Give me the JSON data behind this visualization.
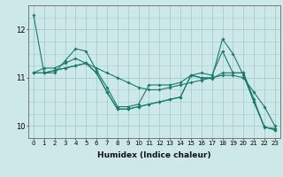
{
  "title": "",
  "xlabel": "Humidex (Indice chaleur)",
  "background_color": "#cce8e8",
  "grid_color": "#aacccc",
  "line_color": "#1a7a6e",
  "series": [
    [
      12.3,
      11.1,
      11.1,
      11.35,
      11.6,
      11.55,
      11.15,
      10.8,
      10.4,
      10.4,
      10.45,
      10.85,
      10.85,
      10.85,
      10.9,
      11.05,
      11.1,
      11.05,
      11.55,
      11.1,
      11.1,
      10.55,
      9.97,
      9.95
    ],
    [
      11.1,
      11.2,
      11.2,
      11.3,
      11.4,
      11.3,
      11.2,
      11.1,
      11.0,
      10.9,
      10.8,
      10.75,
      10.75,
      10.8,
      10.85,
      10.9,
      10.95,
      11.0,
      11.05,
      11.05,
      11.0,
      10.7,
      10.4,
      10.0
    ],
    [
      11.1,
      11.1,
      11.15,
      11.2,
      11.25,
      11.3,
      11.1,
      10.7,
      10.35,
      10.35,
      10.4,
      10.45,
      10.5,
      10.55,
      10.6,
      11.05,
      11.0,
      11.0,
      11.8,
      11.5,
      11.05,
      10.5,
      9.98,
      9.92
    ],
    [
      11.1,
      11.1,
      11.15,
      11.2,
      11.25,
      11.3,
      11.1,
      10.7,
      10.35,
      10.35,
      10.4,
      10.45,
      10.5,
      10.55,
      10.6,
      11.05,
      11.0,
      10.98,
      11.1,
      11.1,
      11.1,
      10.5,
      9.98,
      9.92
    ]
  ],
  "xlim": [
    -0.5,
    23.5
  ],
  "ylim": [
    9.75,
    12.5
  ],
  "yticks": [
    10,
    11,
    12
  ],
  "xticks": [
    0,
    1,
    2,
    3,
    4,
    5,
    6,
    7,
    8,
    9,
    10,
    11,
    12,
    13,
    14,
    15,
    16,
    17,
    18,
    19,
    20,
    21,
    22,
    23
  ],
  "tick_fontsize": 5,
  "xlabel_fontsize": 6.5,
  "linewidth": 0.8,
  "markersize": 2.0
}
